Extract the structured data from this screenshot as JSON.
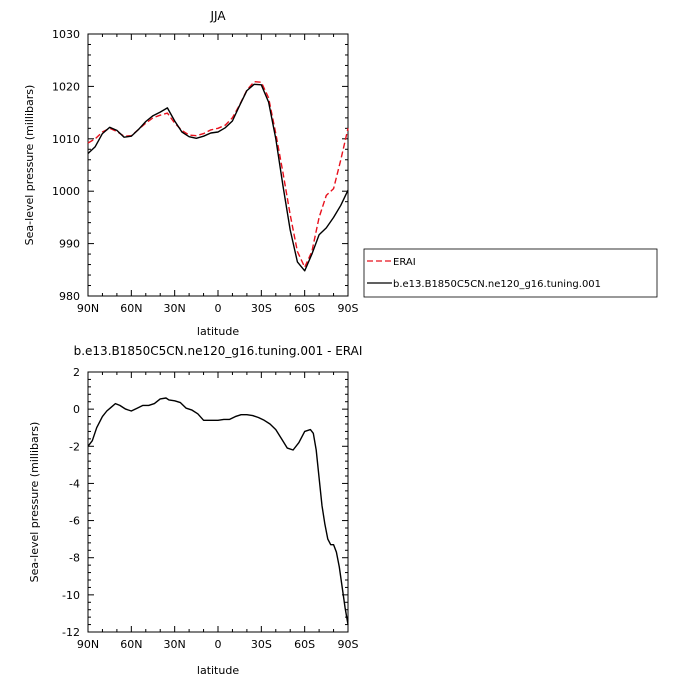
{
  "chart_data": [
    {
      "type": "line",
      "title": "JJA",
      "xlabel": "latitude",
      "ylabel": "Sea-level pressure (millibars)",
      "x_ticks": [
        "90N",
        "60N",
        "30N",
        "0",
        "30S",
        "60S",
        "90S"
      ],
      "x_tick_values": [
        90,
        60,
        30,
        0,
        -30,
        -60,
        -90
      ],
      "xlim": [
        90,
        -90
      ],
      "ylim": [
        980,
        1030
      ],
      "y_ticks": [
        980,
        990,
        1000,
        1010,
        1020,
        1030
      ],
      "legend_position": "right",
      "series": [
        {
          "name": "ERAI",
          "color": "#e8101c",
          "dash": "dashed",
          "x": [
            90,
            85,
            80,
            75,
            70,
            65,
            60,
            55,
            50,
            45,
            40,
            35,
            30,
            25,
            20,
            15,
            10,
            5,
            0,
            -5,
            -10,
            -15,
            -20,
            -25,
            -30,
            -35,
            -40,
            -45,
            -50,
            -55,
            -60,
            -65,
            -70,
            -75,
            -80,
            -85,
            -90
          ],
          "y": [
            1009.2,
            1010.0,
            1011.3,
            1012.0,
            1011.4,
            1010.5,
            1010.6,
            1011.8,
            1013.0,
            1014.0,
            1014.5,
            1014.9,
            1013.0,
            1011.6,
            1010.7,
            1010.6,
            1011.0,
            1011.7,
            1012.0,
            1012.6,
            1014.0,
            1016.5,
            1019.3,
            1020.9,
            1020.8,
            1017.8,
            1011.0,
            1003.5,
            995.5,
            988.5,
            985.5,
            988.5,
            995.0,
            999.2,
            1000.5,
            1006.0,
            1012.0
          ]
        },
        {
          "name": "b.e13.B1850C5CN.ne120_g16.tuning.001",
          "color": "#000000",
          "dash": "solid",
          "x": [
            90,
            85,
            80,
            75,
            70,
            65,
            60,
            55,
            50,
            45,
            40,
            35,
            30,
            25,
            20,
            15,
            10,
            5,
            0,
            -5,
            -10,
            -15,
            -20,
            -25,
            -30,
            -35,
            -40,
            -45,
            -50,
            -55,
            -60,
            -65,
            -70,
            -75,
            -80,
            -85,
            -90
          ],
          "y": [
            1007.2,
            1008.5,
            1011.0,
            1012.2,
            1011.6,
            1010.3,
            1010.5,
            1011.8,
            1013.3,
            1014.4,
            1015.1,
            1015.9,
            1013.4,
            1011.3,
            1010.4,
            1010.1,
            1010.5,
            1011.1,
            1011.3,
            1012.1,
            1013.4,
            1016.4,
            1019.2,
            1020.4,
            1020.3,
            1017.0,
            1010.0,
            1001.0,
            992.6,
            986.5,
            984.8,
            988.0,
            991.7,
            993.0,
            995.0,
            997.3,
            1000.2
          ]
        }
      ]
    },
    {
      "type": "line",
      "title": "b.e13.B1850C5CN.ne120_g16.tuning.001 - ERAI",
      "xlabel": "latitude",
      "ylabel": "Sea-level pressure (millibars)",
      "x_ticks": [
        "90N",
        "60N",
        "30N",
        "0",
        "30S",
        "60S",
        "90S"
      ],
      "x_tick_values": [
        90,
        60,
        30,
        0,
        -30,
        -60,
        -90
      ],
      "xlim": [
        90,
        -90
      ],
      "ylim": [
        -12,
        2
      ],
      "y_ticks": [
        -12,
        -10,
        -8,
        -6,
        -4,
        -2,
        0,
        2
      ],
      "series": [
        {
          "color": "#000000",
          "dash": "solid",
          "x": [
            90,
            87,
            84,
            80,
            77,
            74,
            71,
            68,
            64,
            60,
            56,
            52,
            48,
            44,
            40,
            36,
            34,
            30,
            26,
            22,
            18,
            14,
            10,
            6,
            2,
            0,
            -4,
            -8,
            -12,
            -16,
            -20,
            -24,
            -28,
            -32,
            -36,
            -40,
            -44,
            -48,
            -52,
            -56,
            -60,
            -64,
            -66,
            -68,
            -70,
            -72,
            -74,
            -76,
            -78,
            -80,
            -82,
            -84,
            -86,
            -88,
            -90
          ],
          "y": [
            -2.0,
            -1.7,
            -1.0,
            -0.4,
            -0.1,
            0.1,
            0.3,
            0.2,
            0.0,
            -0.1,
            0.05,
            0.2,
            0.2,
            0.3,
            0.55,
            0.6,
            0.5,
            0.45,
            0.35,
            0.05,
            -0.05,
            -0.25,
            -0.6,
            -0.6,
            -0.6,
            -0.6,
            -0.55,
            -0.55,
            -0.4,
            -0.3,
            -0.3,
            -0.35,
            -0.45,
            -0.6,
            -0.8,
            -1.1,
            -1.6,
            -2.1,
            -2.2,
            -1.8,
            -1.2,
            -1.1,
            -1.3,
            -2.2,
            -3.7,
            -5.2,
            -6.2,
            -7.0,
            -7.3,
            -7.3,
            -7.7,
            -8.5,
            -9.6,
            -10.7,
            -11.6
          ]
        }
      ]
    }
  ]
}
